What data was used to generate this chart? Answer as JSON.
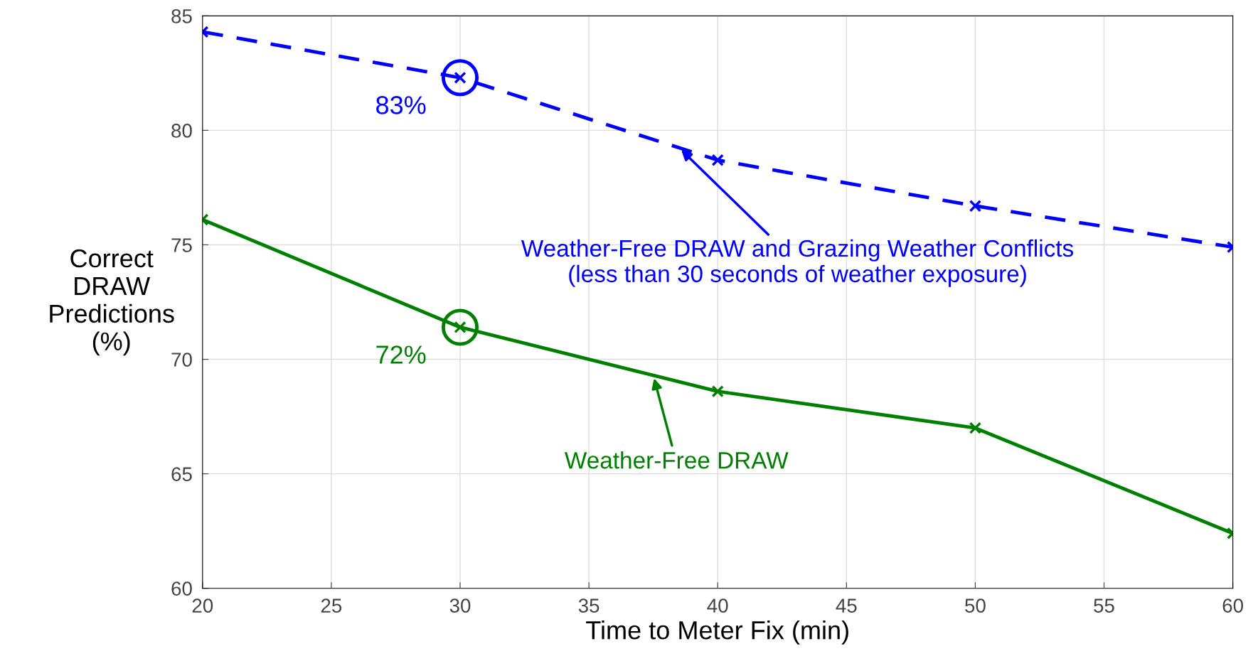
{
  "chart_data": {
    "type": "line",
    "xlabel": "Time to Meter Fix (min)",
    "ylabel": "Correct\nDRAW\nPredictions\n(%)",
    "x": [
      20,
      30,
      40,
      50,
      60
    ],
    "series": [
      {
        "name": "Weather-Free DRAW and Grazing Weather Conflicts\n(less than 30 seconds of weather exposure)",
        "color": "#0000ff",
        "values": [
          84.3,
          82.3,
          78.7,
          76.7,
          74.9
        ],
        "line_style": "dashed"
      },
      {
        "name": "Weather-Free DRAW",
        "color": "#008000",
        "values": [
          76.1,
          71.4,
          68.6,
          67.0,
          62.4
        ],
        "line_style": "solid"
      }
    ],
    "annotations": [
      {
        "text": "83%",
        "x": 30,
        "y": 82.3
      },
      {
        "text": "72%",
        "x": 30,
        "y": 71.4
      }
    ],
    "xlim": [
      20,
      60
    ],
    "ylim": [
      60,
      85
    ],
    "xticks": [
      20,
      25,
      30,
      35,
      40,
      45,
      50,
      55,
      60
    ],
    "yticks": [
      60,
      65,
      70,
      75,
      80,
      85
    ],
    "grid": true,
    "marker": "cross"
  }
}
